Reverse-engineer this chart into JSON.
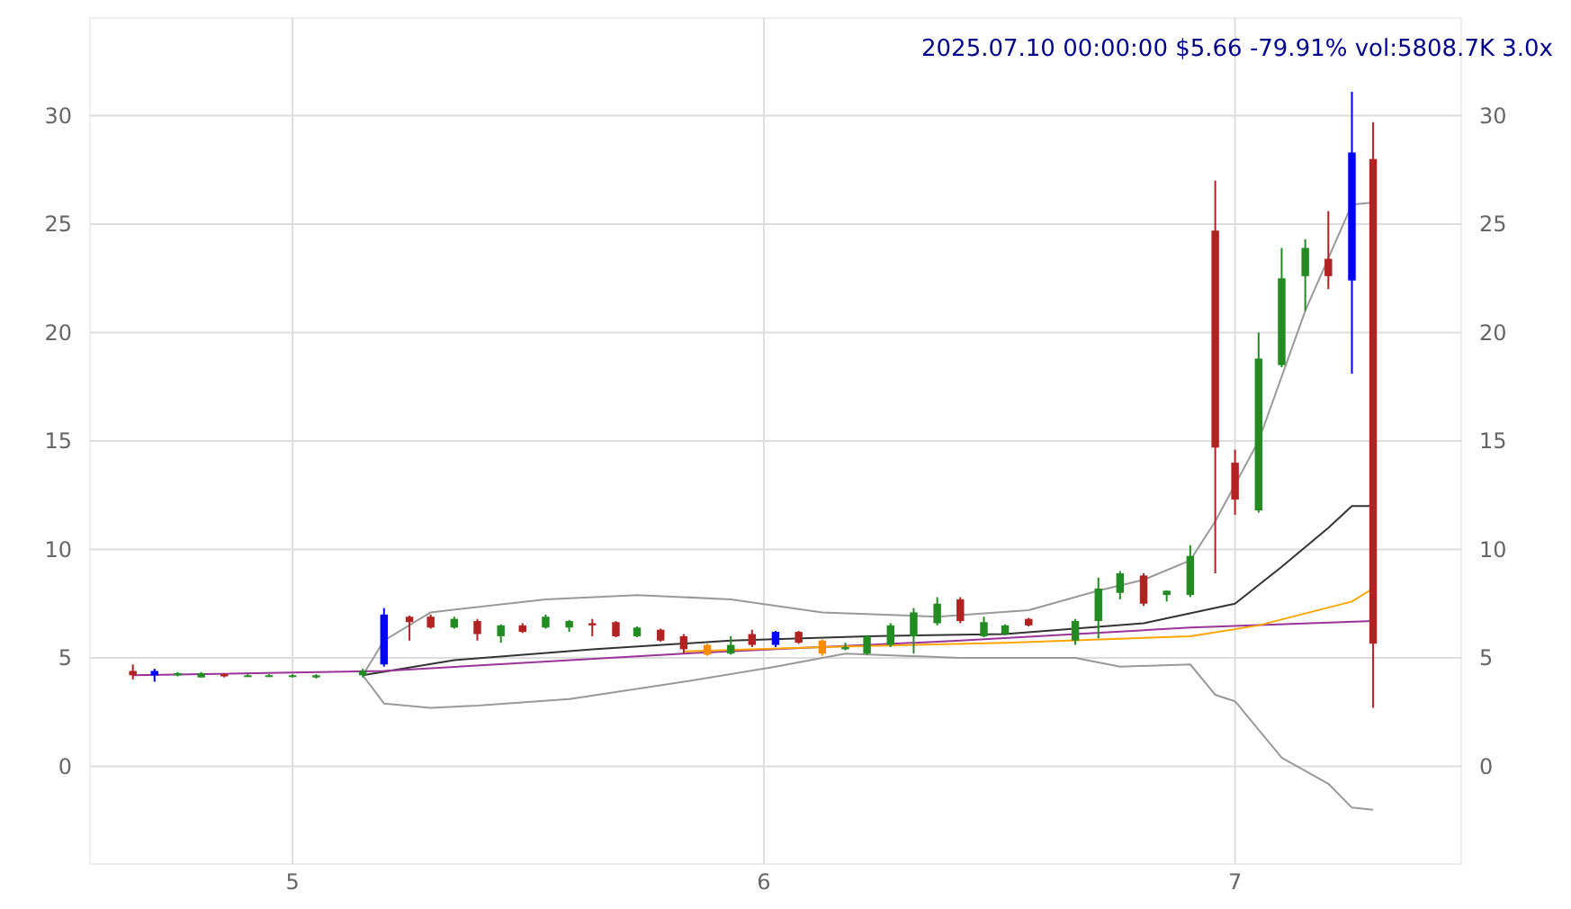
{
  "chart_data": {
    "type": "candlestick",
    "title": "2025.07.10 00:00:00 $5.66 -79.91% vol:5808.7K 3.0x",
    "x": [
      4.661,
      4.707,
      4.756,
      4.806,
      4.855,
      4.905,
      4.95,
      5.0,
      5.05,
      5.149,
      5.194,
      5.248,
      5.293,
      5.343,
      5.392,
      5.442,
      5.488,
      5.537,
      5.587,
      5.636,
      5.686,
      5.731,
      5.781,
      5.83,
      5.88,
      5.93,
      5.975,
      6.025,
      6.074,
      6.124,
      6.173,
      6.219,
      6.269,
      6.318,
      6.368,
      6.417,
      6.467,
      6.512,
      6.562,
      6.661,
      6.71,
      6.756,
      6.806,
      6.855,
      6.905,
      6.958,
      7.0,
      7.05,
      7.099,
      7.149,
      7.198,
      7.248,
      7.293
    ],
    "ohlc": [
      [
        4.4,
        4.7,
        4.0,
        4.2
      ],
      [
        4.2,
        4.5,
        3.9,
        4.4
      ],
      [
        4.2,
        4.35,
        4.15,
        4.3
      ],
      [
        4.1,
        4.35,
        4.1,
        4.3
      ],
      [
        4.25,
        4.3,
        4.1,
        4.15
      ],
      [
        4.2,
        4.25,
        4.15,
        4.2
      ],
      [
        4.2,
        4.25,
        4.15,
        4.2
      ],
      [
        4.15,
        4.25,
        4.1,
        4.2
      ],
      [
        4.1,
        4.25,
        4.05,
        4.2
      ],
      [
        4.2,
        4.5,
        4.1,
        4.4
      ],
      [
        4.7,
        7.3,
        4.6,
        7.0
      ],
      [
        6.9,
        6.95,
        5.8,
        6.65
      ],
      [
        6.9,
        7.0,
        6.35,
        6.4
      ],
      [
        6.4,
        6.9,
        6.35,
        6.8
      ],
      [
        6.7,
        6.8,
        5.8,
        6.1
      ],
      [
        6.0,
        6.55,
        5.7,
        6.5
      ],
      [
        6.5,
        6.6,
        6.15,
        6.2
      ],
      [
        6.4,
        7.0,
        6.35,
        6.9
      ],
      [
        6.4,
        6.75,
        6.2,
        6.7
      ],
      [
        6.6,
        6.8,
        6.0,
        6.5
      ],
      [
        6.65,
        6.7,
        5.95,
        6.0
      ],
      [
        6.0,
        6.45,
        5.95,
        6.4
      ],
      [
        6.3,
        6.35,
        5.75,
        5.8
      ],
      [
        6.0,
        6.1,
        5.2,
        5.4
      ],
      [
        5.6,
        5.65,
        5.1,
        5.15
      ],
      [
        5.2,
        6.0,
        5.15,
        5.6
      ],
      [
        6.1,
        6.3,
        5.5,
        5.6
      ],
      [
        5.6,
        6.25,
        5.5,
        6.2
      ],
      [
        6.2,
        6.25,
        5.65,
        5.7
      ],
      [
        5.8,
        5.85,
        5.1,
        5.2
      ],
      [
        5.4,
        5.7,
        5.35,
        5.5
      ],
      [
        5.2,
        6.05,
        5.15,
        6.0
      ],
      [
        5.6,
        6.6,
        5.5,
        6.5
      ],
      [
        6.0,
        7.3,
        5.2,
        7.1
      ],
      [
        6.6,
        7.8,
        6.5,
        7.5
      ],
      [
        7.7,
        7.8,
        6.6,
        6.7
      ],
      [
        6.0,
        6.9,
        5.95,
        6.65
      ],
      [
        6.1,
        6.55,
        6.05,
        6.5
      ],
      [
        6.8,
        6.85,
        6.45,
        6.5
      ],
      [
        5.8,
        6.8,
        5.6,
        6.7
      ],
      [
        6.7,
        8.7,
        5.9,
        8.2
      ],
      [
        8.0,
        9.0,
        7.7,
        8.9
      ],
      [
        8.8,
        8.9,
        7.4,
        7.5
      ],
      [
        7.9,
        8.1,
        7.6,
        8.1
      ],
      [
        7.9,
        10.2,
        7.8,
        9.7
      ],
      [
        24.7,
        27.0,
        8.9,
        14.7
      ],
      [
        14.0,
        14.6,
        11.6,
        12.3
      ],
      [
        11.8,
        20.0,
        11.7,
        18.8
      ],
      [
        18.5,
        23.9,
        18.4,
        22.5
      ],
      [
        22.6,
        24.3,
        21.0,
        23.9
      ],
      [
        23.4,
        25.6,
        22.0,
        22.6
      ],
      [
        22.4,
        31.1,
        18.1,
        28.3
      ],
      [
        28.0,
        29.7,
        2.7,
        5.66
      ]
    ],
    "colors": [
      "#b22222",
      "#0000ff",
      "#228b22",
      "#228b22",
      "#b22222",
      "#228b22",
      "#228b22",
      "#228b22",
      "#228b22",
      "#228b22",
      "#0000ff",
      "#b22222",
      "#b22222",
      "#228b22",
      "#b22222",
      "#228b22",
      "#b22222",
      "#228b22",
      "#228b22",
      "#b22222",
      "#b22222",
      "#228b22",
      "#b22222",
      "#b22222",
      "#ff8c00",
      "#228b22",
      "#b22222",
      "#0000ff",
      "#b22222",
      "#ff8c00",
      "#228b22",
      "#228b22",
      "#228b22",
      "#228b22",
      "#228b22",
      "#b22222",
      "#228b22",
      "#228b22",
      "#b22222",
      "#228b22",
      "#228b22",
      "#228b22",
      "#b22222",
      "#228b22",
      "#228b22",
      "#b22222",
      "#b22222",
      "#228b22",
      "#228b22",
      "#228b22",
      "#b22222",
      "#0000ff",
      "#b22222"
    ],
    "series": [
      {
        "type": "line",
        "color": "#333333",
        "x": [
          5.149,
          5.343,
          5.636,
          5.93,
          6.219,
          6.512,
          6.806,
          7.0,
          7.099,
          7.198,
          7.248,
          7.293
        ],
        "values": [
          4.2,
          4.9,
          5.4,
          5.8,
          6.0,
          6.1,
          6.6,
          7.5,
          9.2,
          11.0,
          12.0,
          12.0
        ]
      },
      {
        "type": "line",
        "color": "#999999",
        "x": [
          5.149,
          5.194,
          5.293,
          5.537,
          5.731,
          5.93,
          6.124,
          6.368,
          6.562,
          6.71,
          6.806,
          6.905,
          6.958,
          7.05,
          7.149,
          7.248,
          7.293
        ],
        "values": [
          4.2,
          5.8,
          7.1,
          7.7,
          7.9,
          7.7,
          7.1,
          6.9,
          7.2,
          8.1,
          8.6,
          9.5,
          11.3,
          15.0,
          21.0,
          25.9,
          26.0
        ]
      },
      {
        "type": "line",
        "color": "#999999",
        "x": [
          5.149,
          5.194,
          5.293,
          5.392,
          5.587,
          5.83,
          6.025,
          6.173,
          6.417,
          6.661,
          6.756,
          6.905,
          6.958,
          7.0,
          7.099,
          7.198,
          7.248,
          7.293
        ],
        "values": [
          4.2,
          2.9,
          2.7,
          2.8,
          3.1,
          3.9,
          4.6,
          5.2,
          5.0,
          5.0,
          4.6,
          4.7,
          3.3,
          3.0,
          0.4,
          -0.8,
          -1.9,
          -2.0
        ]
      },
      {
        "type": "line",
        "color": "#993399",
        "x": [
          4.661,
          5.194,
          5.83,
          6.417,
          6.905,
          7.293
        ],
        "values": [
          4.2,
          4.4,
          5.2,
          5.8,
          6.4,
          6.7
        ]
      },
      {
        "type": "line",
        "color": "#ffa500",
        "x": [
          5.83,
          6.124,
          6.512,
          6.905,
          7.05,
          7.248,
          7.293
        ],
        "values": [
          5.3,
          5.5,
          5.7,
          6.0,
          6.5,
          7.6,
          8.2
        ]
      }
    ],
    "xlim": [
      4.57,
      7.48
    ],
    "xticks": [
      5,
      6,
      7
    ],
    "ylim": [
      -4.5,
      34.5
    ],
    "yticks": [
      0,
      5,
      10,
      15,
      20,
      25,
      30
    ],
    "y2lim": [
      -4.5,
      34.5
    ],
    "y2ticks": [
      0,
      5,
      10,
      15,
      20,
      25,
      30
    ],
    "grid": true
  }
}
